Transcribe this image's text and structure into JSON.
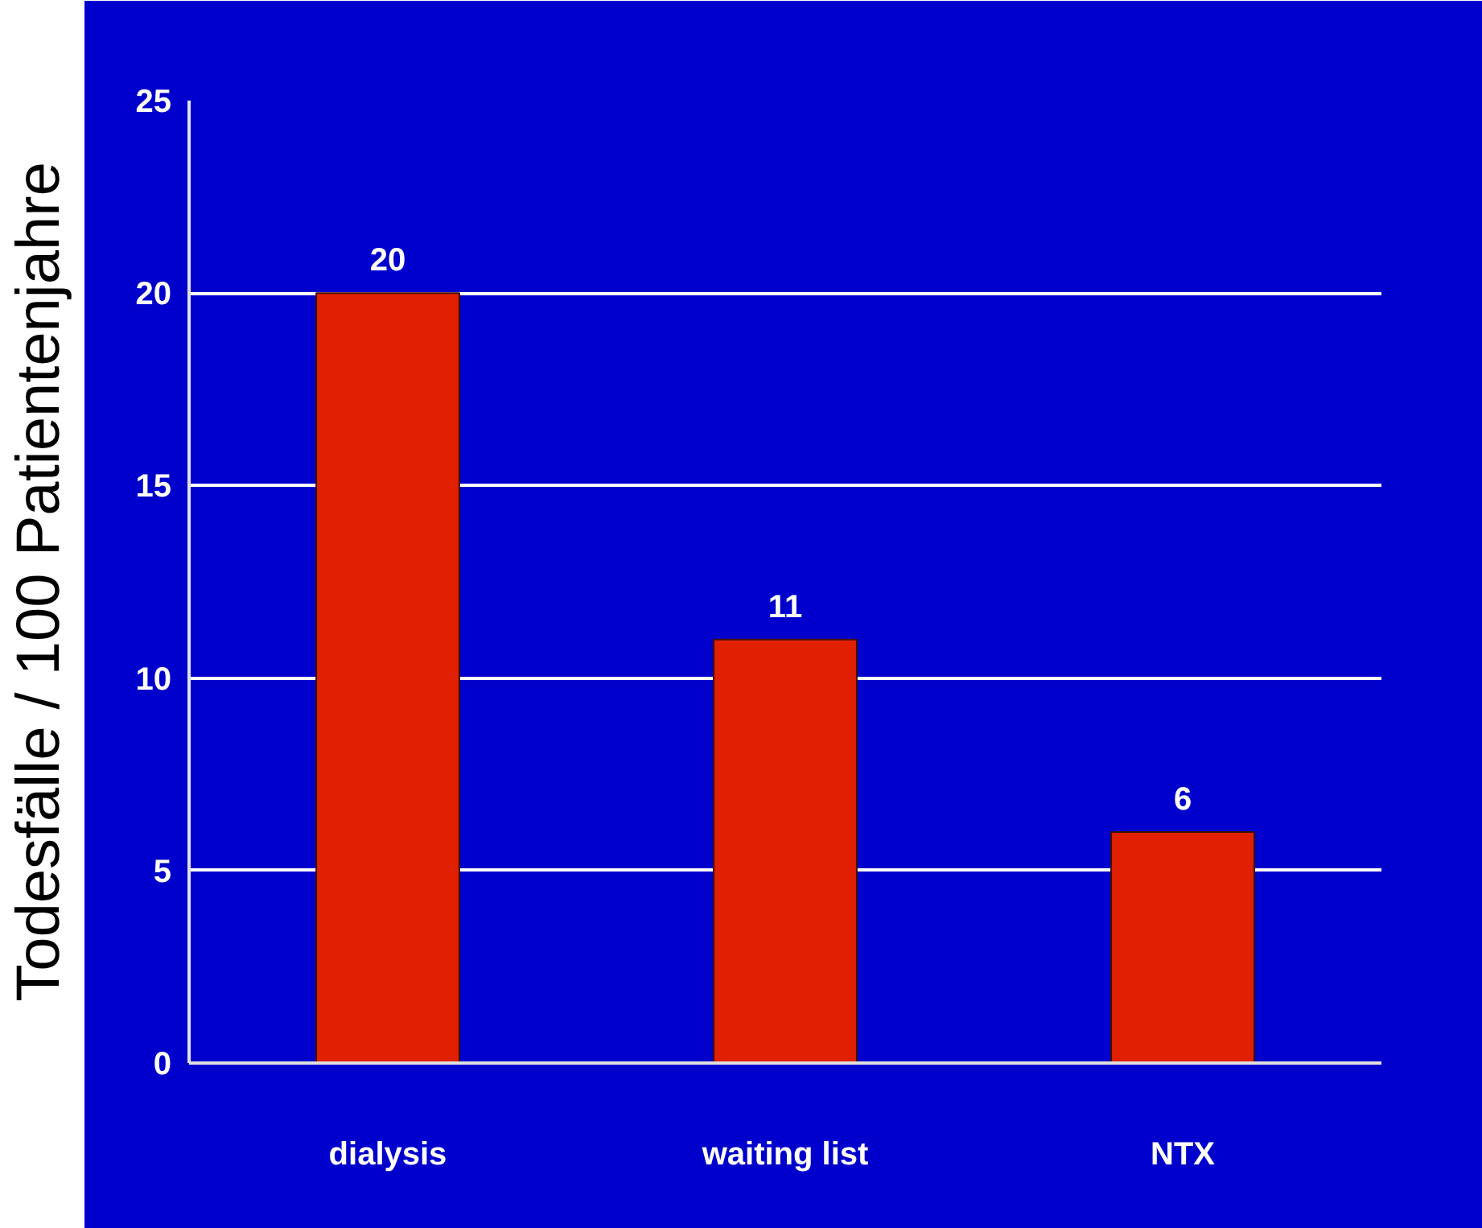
{
  "chart_data": {
    "type": "bar",
    "ylabel": "Todesfälle / 100 Patientenjahre",
    "categories": [
      "dialysis",
      "waiting list",
      "NTX"
    ],
    "values": [
      20,
      11,
      6
    ],
    "color": "#e02000",
    "ylim": [
      0,
      25
    ],
    "yticks": [
      0,
      5,
      10,
      15,
      20,
      25
    ],
    "grid": "y",
    "data_labels": true
  }
}
